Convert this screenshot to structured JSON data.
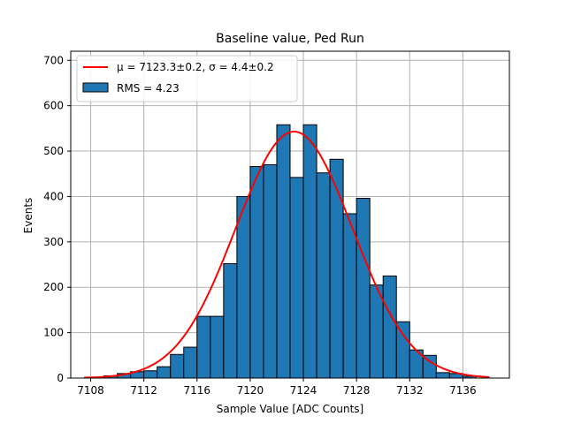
{
  "chart_data": {
    "type": "bar",
    "title": "Baseline value, Ped Run",
    "xlabel": "Sample Value [ADC Counts]",
    "ylabel": "Events",
    "xlim": [
      7106.5,
      7139.5
    ],
    "ylim": [
      0,
      720
    ],
    "x_ticks": [
      7108,
      7112,
      7116,
      7120,
      7124,
      7128,
      7132,
      7136
    ],
    "y_ticks": [
      0,
      100,
      200,
      300,
      400,
      500,
      600,
      700
    ],
    "grid": true,
    "legend_position": "top-left",
    "bar_color": "#1f77b4",
    "bar_edge_color": "#000000",
    "fit_color": "#ff0000",
    "bins": {
      "edges": [
        7108,
        7109,
        7110,
        7111,
        7112,
        7113,
        7114,
        7115,
        7116,
        7117,
        7118,
        7119,
        7120,
        7121,
        7122,
        7123,
        7124,
        7125,
        7126,
        7127,
        7128,
        7129,
        7130,
        7131,
        7132,
        7133,
        7134,
        7135,
        7136,
        7137
      ],
      "counts": [
        2,
        5,
        10,
        14,
        16,
        25,
        52,
        68,
        136,
        136,
        252,
        400,
        466,
        470,
        558,
        442,
        558,
        452,
        482,
        362,
        396,
        205,
        225,
        124,
        62,
        50,
        12,
        10,
        4
      ]
    },
    "fit": {
      "mu": 7123.3,
      "sigma": 4.4,
      "amplitude": 543,
      "x_range": [
        7107.5,
        7138.0
      ]
    },
    "legend": [
      {
        "kind": "line",
        "label": "μ = 7123.3±0.2, σ = 4.4±0.2"
      },
      {
        "kind": "patch",
        "label": "RMS = 4.23"
      }
    ]
  }
}
